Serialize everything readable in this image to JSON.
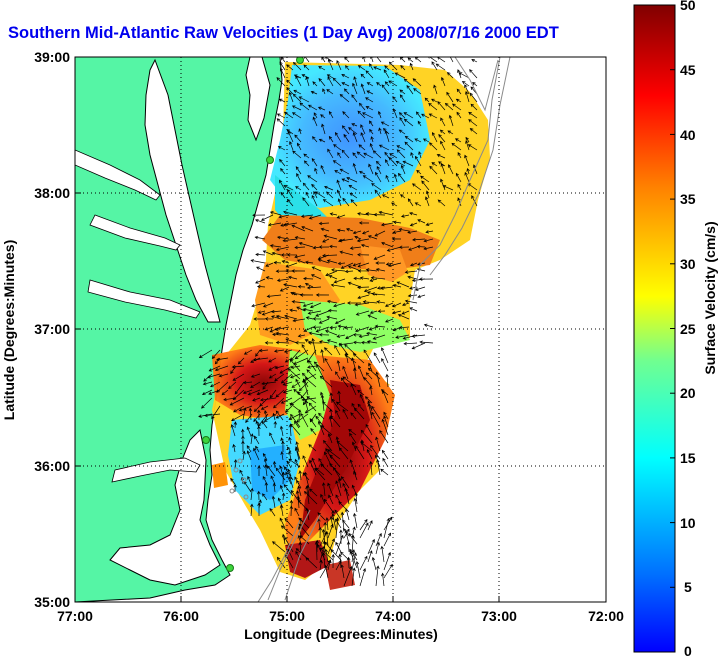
{
  "title": "Southern Mid-Atlantic Raw Velocities (1 Day Avg) 2008/07/16 2000 EDT",
  "x_axis": {
    "label": "Longitude (Degrees:Minutes)",
    "ticks": [
      "77:00",
      "76:00",
      "75:00",
      "74:00",
      "73:00",
      "72:00"
    ]
  },
  "y_axis": {
    "label": "Latitude (Degrees:Minutes)",
    "ticks": [
      "39:00",
      "38:00",
      "37:00",
      "36:00",
      "35:00"
    ]
  },
  "colorbar": {
    "label": "Surface Velocity (cm/s)",
    "ticks": [
      "50",
      "45",
      "40",
      "35",
      "30",
      "25",
      "20",
      "15",
      "10",
      "5",
      "0"
    ],
    "min": 0,
    "max": 50
  },
  "colors": {
    "title": "#0000ee",
    "land": "#55f5a5",
    "grid": "#000000"
  },
  "map": {
    "lon_range": [
      -77,
      -72
    ],
    "lat_range": [
      35,
      39
    ],
    "grid": "dotted",
    "features": [
      "coastline",
      "bathymetry-contours",
      "velocity-arrows",
      "hf-radar-sites"
    ]
  }
}
